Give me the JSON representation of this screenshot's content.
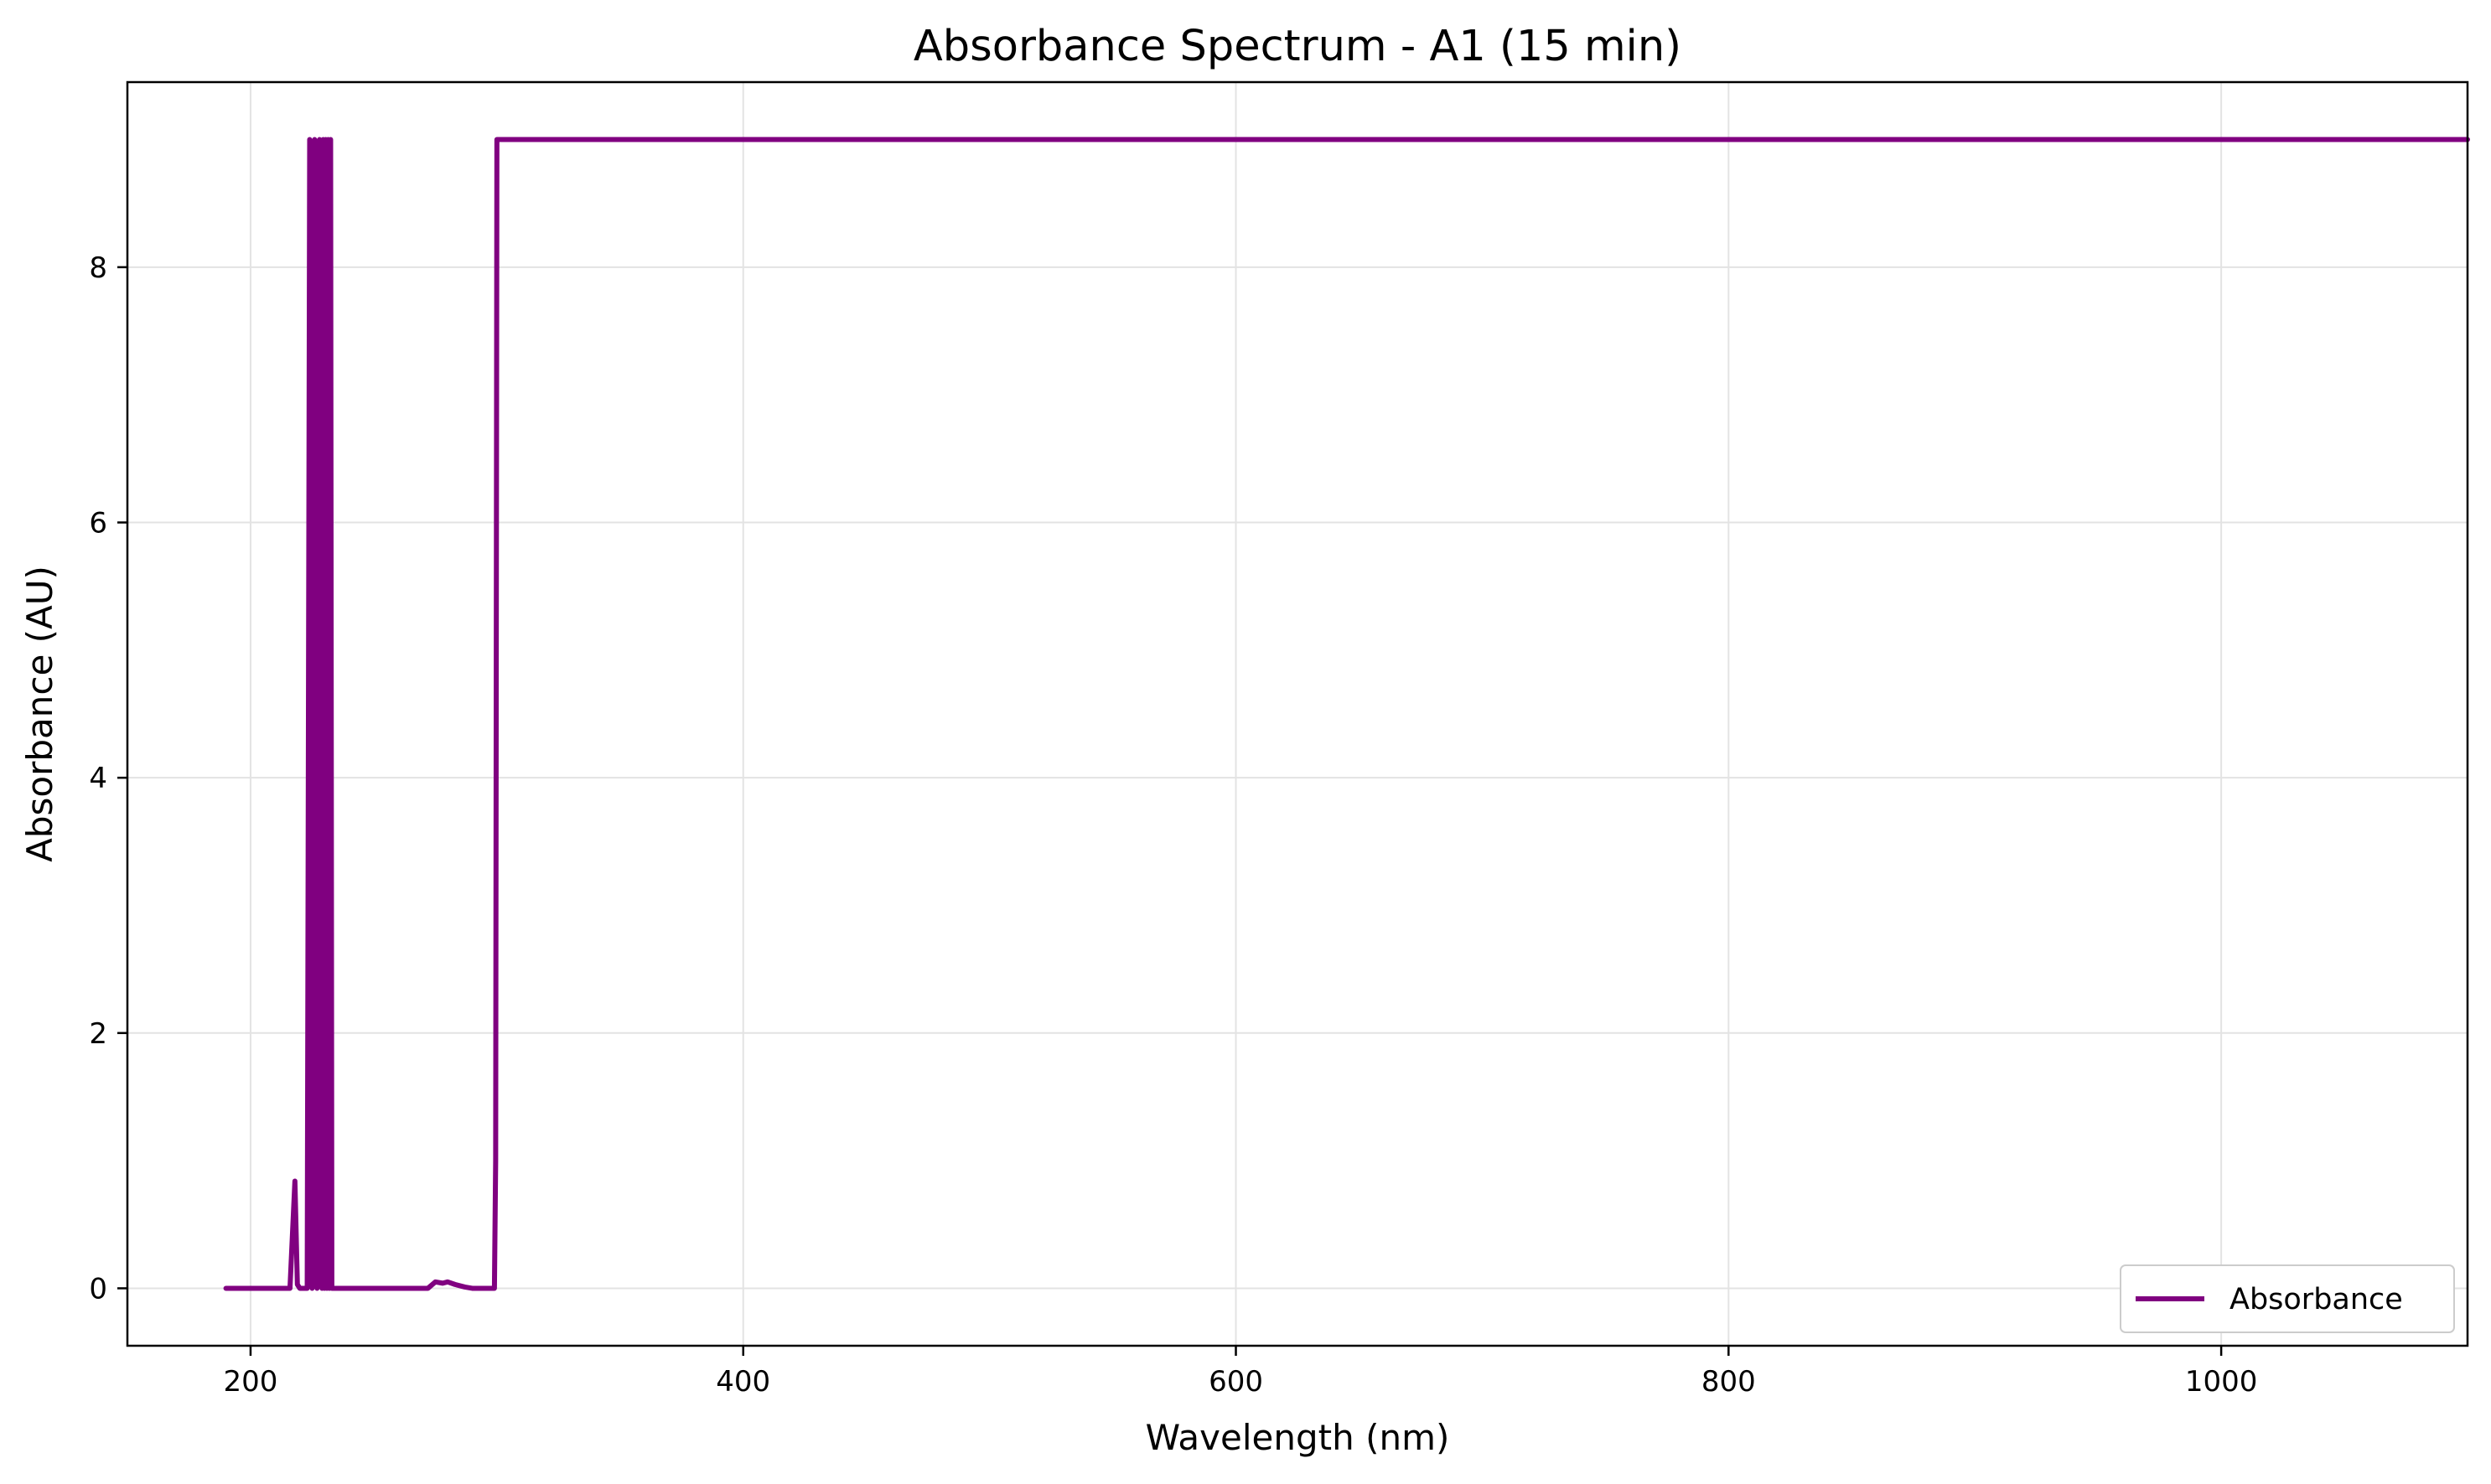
{
  "chart_data": {
    "type": "line",
    "title": "Absorbance Spectrum - A1 (15 min)",
    "xlabel": "Wavelength (nm)",
    "ylabel": "Absorbance (AU)",
    "xlim": [
      150,
      1100
    ],
    "ylim": [
      -0.45,
      9.45
    ],
    "xticks": [
      200,
      400,
      600,
      800,
      1000
    ],
    "yticks": [
      0,
      2,
      4,
      6,
      8
    ],
    "grid": true,
    "legend_position": "lower-right",
    "series": [
      {
        "name": "Absorbance",
        "color": "#800080",
        "x": [
          190,
          216,
          218,
          219,
          220,
          221,
          222,
          223,
          224,
          225,
          226,
          227,
          228,
          229,
          229.5,
          230,
          230.5,
          231,
          231.5,
          232,
          232.5,
          233,
          234,
          250,
          270,
          272,
          275,
          278,
          280,
          283,
          285,
          287,
          290,
          292,
          295,
          297,
          299,
          299.5,
          300,
          500,
          800,
          1000,
          1100
        ],
        "y": [
          0,
          0,
          0.84,
          0.03,
          0,
          0,
          0,
          0,
          9,
          0,
          9,
          0,
          9,
          0,
          9,
          0,
          9,
          0,
          9,
          0,
          9,
          0,
          0,
          0,
          0,
          0,
          0.05,
          0.04,
          0.05,
          0.03,
          0.02,
          0.01,
          0,
          0,
          0,
          0,
          0,
          1.0,
          9,
          9,
          9,
          9,
          9
        ]
      }
    ]
  }
}
